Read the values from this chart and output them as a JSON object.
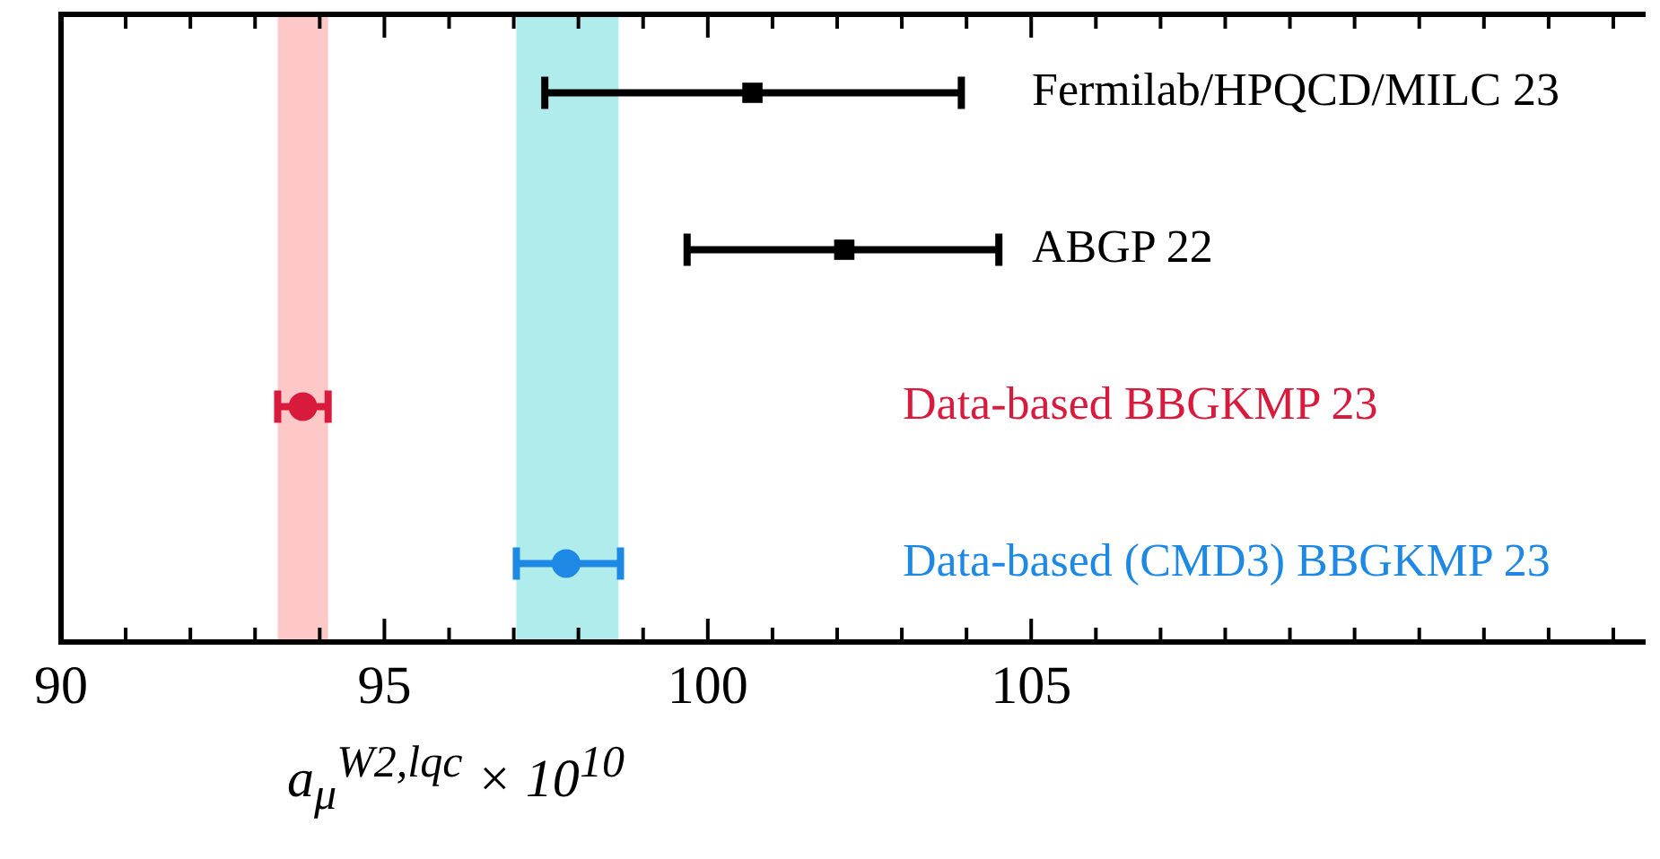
{
  "chart_data": {
    "type": "scatter",
    "orientation": "horizontal",
    "xlabel": "a$_{μ}$$^{W2,lqc}$ × 10$^{10}$",
    "categories": [
      null,
      null,
      null,
      null
    ],
    "legend": "right",
    "xlim": [
      90,
      114.5
    ],
    "xticks": [
      90,
      {
        "value": 91,
        "label": null
      },
      {
        "value": 92,
        "label": null
      },
      {
        "value": 93,
        "label": null
      },
      {
        "value": 94,
        "label": null
      },
      95,
      {
        "value": 96,
        "label": null
      },
      {
        "value": 97,
        "label": null
      },
      {
        "value": 98,
        "label": null
      },
      {
        "value": 99,
        "label": null
      },
      100,
      {
        "value": 101,
        "label": null
      },
      {
        "value": 102,
        "label": null
      },
      {
        "value": 103,
        "label": null
      },
      {
        "value": 104,
        "label": null
      },
      105,
      {
        "value": 106,
        "label": null
      },
      {
        "value": 107,
        "label": null
      },
      {
        "value": 108,
        "label": null
      },
      {
        "value": 109,
        "label": null
      },
      {
        "value": 110,
        "label": null
      },
      {
        "value": 111,
        "label": null
      },
      {
        "value": 112,
        "label": null
      },
      {
        "value": 113,
        "label": null
      },
      {
        "value": 114,
        "label": null
      }
    ],
    "series": [
      {
        "name": "Fermilab/HPQCD/MILC 23",
        "color": "#000000",
        "marker": "square",
        "values": [
          100.69,
          null,
          null,
          null
        ],
        "errors": [
          [
            97.48,
            103.92
          ],
          null,
          null,
          null
        ]
      },
      {
        "name": "ABGP 22",
        "color": "#000000",
        "marker": "square",
        "values": [
          null,
          102.11,
          null,
          null
        ],
        "errors": [
          null,
          [
            99.68,
            104.5
          ],
          null,
          null
        ]
      },
      {
        "name": "Data-based BBGKMP 23",
        "color": "#d81b3c",
        "marker": "circle",
        "values": [
          null,
          null,
          93.74,
          null
        ],
        "errors": [
          null,
          null,
          [
            93.35,
            94.13
          ],
          null
        ]
      },
      {
        "name": "Data-based (CMD3) BBGKMP 23",
        "color": "#1e88e5",
        "marker": "circle",
        "values": [
          null,
          null,
          null,
          97.81
        ],
        "errors": [
          null,
          null,
          null,
          [
            97.04,
            98.65
          ]
        ]
      }
    ],
    "bands": [
      {
        "axis": "x",
        "from": 93.35,
        "to": 94.13,
        "color": "#ffc8c8"
      },
      {
        "axis": "x",
        "from": 97.04,
        "to": 98.62,
        "color": "#b0ecec"
      }
    ]
  }
}
